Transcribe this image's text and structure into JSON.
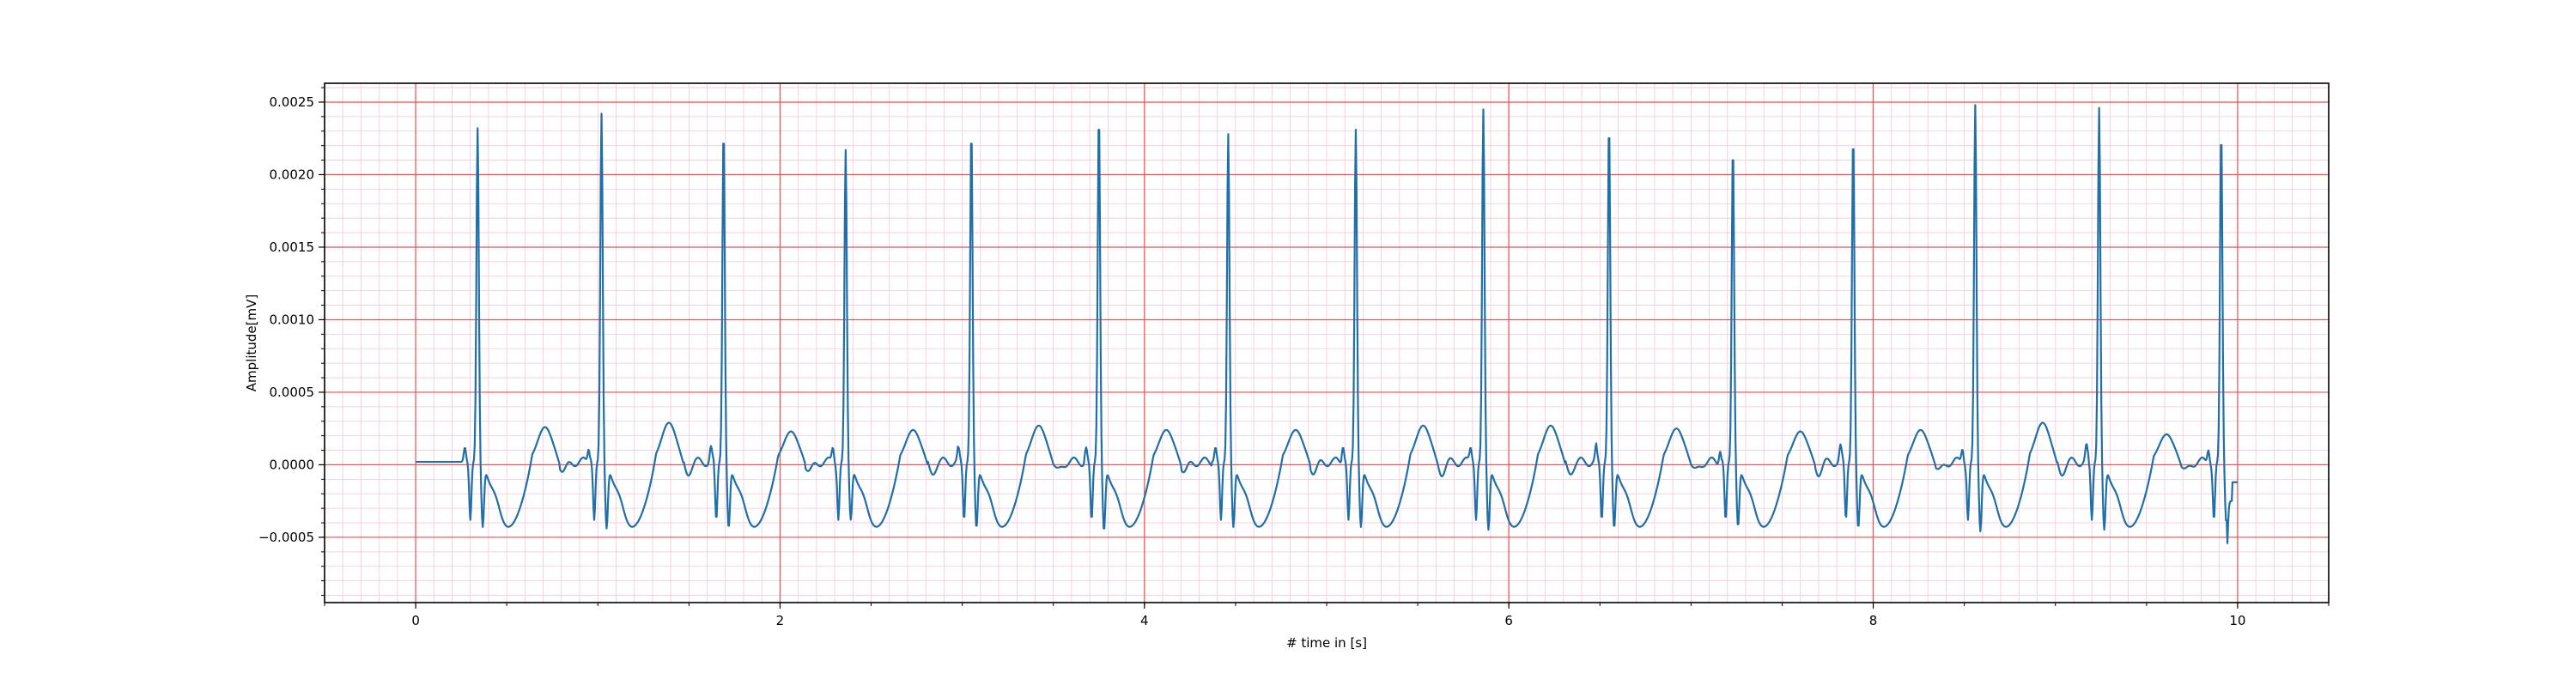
{
  "colors": {
    "line": "#1f6fa8",
    "major_grid": "#ee4d4d",
    "minor_grid": "#f7c6d6",
    "axes": "#000000"
  },
  "chart_data": {
    "type": "line",
    "title": "",
    "xlabel": "# time in [s]",
    "ylabel": "Amplitude[mV]",
    "xlim": [
      -0.5,
      10.5
    ],
    "ylim": [
      -0.00095,
      0.00263
    ],
    "xticks": [
      0,
      2,
      4,
      6,
      8,
      10
    ],
    "xtick_labels": [
      "0",
      "2",
      "4",
      "6",
      "8",
      "10"
    ],
    "yticks": [
      -0.0005,
      0.0,
      0.0005,
      0.001,
      0.0015,
      0.002,
      0.0025
    ],
    "ytick_labels": [
      "−0.0005",
      "0.0000",
      "0.0005",
      "0.0010",
      "0.0015",
      "0.0020",
      "0.0025"
    ],
    "major_grid": true,
    "minor_grid": true,
    "x_minor_step": 0.1,
    "y_minor_step": 0.0001,
    "series": [
      {
        "sampling": "ECG waveform, 10 s; beats listed as time of R peak",
        "baseline_offset": 2e-05,
        "beats": [
          {
            "t": 0.34,
            "r": 0.0023,
            "s": -0.00075,
            "tw": 0.00024
          },
          {
            "t": 1.02,
            "r": 0.0024,
            "s": -0.00076,
            "tw": 0.00027
          },
          {
            "t": 1.69,
            "r": 0.0023,
            "s": -0.00076,
            "tw": 0.00021
          },
          {
            "t": 2.36,
            "r": 0.00215,
            "s": -0.0007,
            "tw": 0.00022
          },
          {
            "t": 3.05,
            "r": 0.0023,
            "s": -0.00076,
            "tw": 0.00025
          },
          {
            "t": 3.75,
            "r": 0.0024,
            "s": -0.00078,
            "tw": 0.00022
          },
          {
            "t": 4.46,
            "r": 0.00226,
            "s": -0.00075,
            "tw": 0.00022
          },
          {
            "t": 5.16,
            "r": 0.00229,
            "s": -0.00075,
            "tw": 0.00025
          },
          {
            "t": 5.86,
            "r": 0.00243,
            "s": -0.00077,
            "tw": 0.00025
          },
          {
            "t": 6.55,
            "r": 0.00234,
            "s": -0.00076,
            "tw": 0.00023
          },
          {
            "t": 7.23,
            "r": 0.00218,
            "s": -0.00075,
            "tw": 0.00021
          },
          {
            "t": 7.89,
            "r": 0.00226,
            "s": -0.00076,
            "tw": 0.00022
          },
          {
            "t": 8.56,
            "r": 0.00246,
            "s": -0.00078,
            "tw": 0.00027
          },
          {
            "t": 9.24,
            "r": 0.00244,
            "s": -0.00077,
            "tw": 0.00019
          },
          {
            "t": 9.91,
            "r": 0.00229,
            "s": -0.00072,
            "tw": 0.0
          }
        ],
        "x_start": 0.0,
        "x_end": 10.0,
        "end_values": [
          -0.00028,
          -0.00012
        ]
      }
    ]
  }
}
